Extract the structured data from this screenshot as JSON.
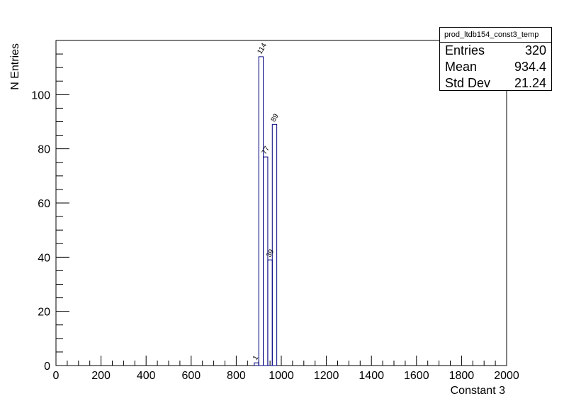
{
  "stats": {
    "title": "prod_ltdb154_const3_temp",
    "rows": [
      {
        "label": "Entries",
        "value": "320"
      },
      {
        "label": "Mean",
        "value": "934.4"
      },
      {
        "label": "Std Dev",
        "value": "21.24"
      }
    ]
  },
  "chart_data": {
    "type": "bar",
    "title": "",
    "xlabel": "Constant 3",
    "ylabel": "N Entries",
    "xlim": [
      0,
      2000
    ],
    "ylim": [
      0,
      120
    ],
    "x_ticks": [
      0,
      200,
      400,
      600,
      800,
      1000,
      1200,
      1400,
      1600,
      1800,
      2000
    ],
    "y_ticks": [
      0,
      20,
      40,
      60,
      80,
      100
    ],
    "bins": [
      {
        "x0": 880,
        "x1": 900,
        "value": 1,
        "label": "1"
      },
      {
        "x0": 900,
        "x1": 920,
        "value": 114,
        "label": "114"
      },
      {
        "x0": 920,
        "x1": 940,
        "value": 77,
        "label": "77"
      },
      {
        "x0": 940,
        "x1": 960,
        "value": 39,
        "label": "39"
      },
      {
        "x0": 960,
        "x1": 980,
        "value": 89,
        "label": "89"
      }
    ],
    "colors": {
      "line": "#000080",
      "axis": "#000000"
    },
    "grid": false
  }
}
